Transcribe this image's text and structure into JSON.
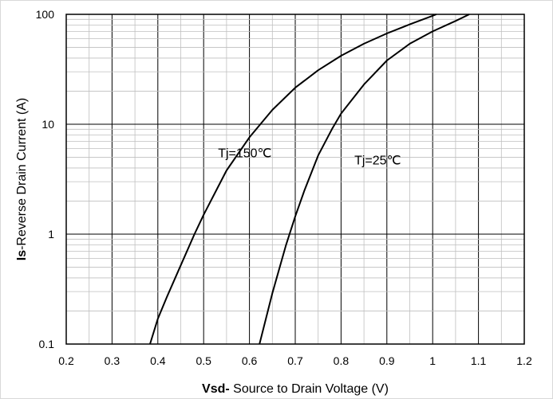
{
  "chart_data": {
    "type": "line",
    "title": "",
    "xlabel_bold": "Vsd-",
    "xlabel_rest": " Source to Drain Voltage (V)",
    "ylabel_bold": "Is",
    "ylabel_rest": "-Reverse Drain Current (A)",
    "xlim": [
      0.2,
      1.2
    ],
    "ylim": [
      0.1,
      100
    ],
    "yscale": "log",
    "grid": true,
    "x_ticks": [
      "0.2",
      "0.3",
      "0.4",
      "0.5",
      "0.6",
      "0.7",
      "0.8",
      "0.9",
      "1",
      "1.1",
      "1.2"
    ],
    "y_ticks": [
      "0.1",
      "1",
      "10",
      "100"
    ],
    "series": [
      {
        "name": "Tj=150℃",
        "x": [
          0.383,
          0.4,
          0.42,
          0.45,
          0.48,
          0.5,
          0.55,
          0.6,
          0.65,
          0.7,
          0.75,
          0.8,
          0.85,
          0.9,
          0.95,
          1.0,
          1.008
        ],
        "y": [
          0.1,
          0.17,
          0.27,
          0.52,
          1.0,
          1.5,
          3.8,
          7.6,
          13.5,
          21.5,
          31,
          42,
          54,
          67,
          81,
          97,
          100
        ]
      },
      {
        "name": "Tj=25℃",
        "x": [
          0.622,
          0.65,
          0.68,
          0.7,
          0.72,
          0.75,
          0.78,
          0.8,
          0.85,
          0.9,
          0.95,
          1.0,
          1.05,
          1.08
        ],
        "y": [
          0.1,
          0.29,
          0.8,
          1.45,
          2.5,
          5.2,
          9.0,
          12.5,
          23,
          38,
          54,
          70,
          87,
          100
        ]
      }
    ],
    "annotations": [
      {
        "text": "Tj=150℃",
        "x": 0.59,
        "y": 5.0
      },
      {
        "text": "Tj=25℃",
        "x": 0.88,
        "y": 4.3
      }
    ]
  }
}
